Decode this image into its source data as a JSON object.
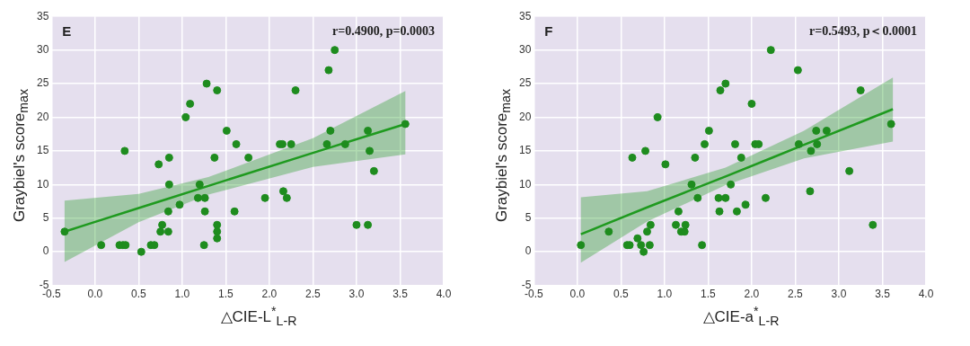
{
  "chart_data": [
    {
      "type": "scatter",
      "xlabel": "△CIE-L$^{*}$$_{L-R}$",
      "ylabel": "Graybiel's score$_{max}$",
      "annotations": [
        "E",
        "r=0.4900, p=0.0003"
      ],
      "grid": true,
      "xlim": [
        -0.5,
        4.0
      ],
      "xticks": [
        {
          "value": -0.5,
          "label": "-0.5"
        },
        {
          "value": 0,
          "label": "0.0"
        },
        {
          "value": 0.5,
          "label": "0.5"
        },
        {
          "value": 1,
          "label": "1.0"
        },
        {
          "value": 1.5,
          "label": "1.5"
        },
        {
          "value": 2,
          "label": "2.0"
        },
        {
          "value": 2.5,
          "label": "2.5"
        },
        {
          "value": 3,
          "label": "3.0"
        },
        {
          "value": 3.5,
          "label": "3.5"
        },
        {
          "value": 4,
          "label": "4.0"
        }
      ],
      "ylim": [
        -5,
        35
      ],
      "yticks": [
        -5,
        0,
        5,
        10,
        15,
        20,
        25,
        30,
        35
      ],
      "series": [
        {
          "color": "#1e8c1e",
          "marker": "circle",
          "x": [
            -0.35,
            0.34,
            0.07,
            0.28,
            0.32,
            0.35,
            0.53,
            0.64,
            0.68,
            0.73,
            0.85,
            0.85,
            0.77,
            0.75,
            0.84,
            0.84,
            0.97,
            1.04,
            1.09,
            1.2,
            1.18,
            1.26,
            1.26,
            1.25,
            1.28,
            1.4,
            1.37,
            1.4,
            1.4,
            1.4,
            1.51,
            1.62,
            1.6,
            1.76,
            1.95,
            2.75,
            2.68,
            2.3,
            3.56,
            2.7,
            3.13,
            2.12,
            2.15,
            2.25,
            2.66,
            2.87,
            3.15,
            3.2,
            2.16,
            2.2,
            3.0,
            3.13
          ],
          "values": [
            3,
            15,
            1,
            1,
            1,
            1,
            0,
            1,
            1,
            13,
            14,
            10,
            4,
            3,
            3,
            6,
            7,
            20,
            22,
            10,
            8,
            8,
            6,
            1,
            25,
            24,
            14,
            4,
            3,
            2,
            18,
            16,
            6,
            14,
            8,
            30,
            27,
            24,
            19,
            18,
            18,
            16,
            16,
            16,
            16,
            16,
            15,
            12,
            9,
            8,
            4,
            4
          ]
        },
        {
          "type": "line",
          "marker": "none",
          "color": "#1f9a1f",
          "x": [
            -0.35,
            0.5,
            1.3,
            2.5,
            3.56
          ],
          "values": [
            3.0,
            6.5,
            9.8,
            14.7,
            19.0
          ],
          "lower": [
            -1.5,
            4.4,
            8.5,
            12.6,
            14.5
          ],
          "upper": [
            7.6,
            8.6,
            11.1,
            16.9,
            23.9
          ]
        }
      ]
    },
    {
      "type": "scatter",
      "xlabel": "△CIE-a$^{*}$$_{L-R}$",
      "ylabel": "Graybiel's score$_{max}$",
      "annotations": [
        "F",
        "r=0.5493, p＜0.0001"
      ],
      "grid": true,
      "xlim": [
        -0.5,
        4.0
      ],
      "xticks": [
        {
          "value": -0.5,
          "label": "-0.5"
        },
        {
          "value": 0,
          "label": "0.0"
        },
        {
          "value": 0.5,
          "label": "0.5"
        },
        {
          "value": 1,
          "label": "1.0"
        },
        {
          "value": 1.5,
          "label": "1.5"
        },
        {
          "value": 2,
          "label": "2.0"
        },
        {
          "value": 2.5,
          "label": "2.5"
        },
        {
          "value": 3,
          "label": "3.0"
        },
        {
          "value": 3.5,
          "label": "3.5"
        },
        {
          "value": 4,
          "label": "4.0"
        }
      ],
      "ylim": [
        -5,
        35
      ],
      "yticks": [
        -5,
        0,
        5,
        10,
        15,
        20,
        25,
        30,
        35
      ],
      "series": [
        {
          "color": "#1e8c1e",
          "marker": "circle",
          "x": [
            0.04,
            0.36,
            0.57,
            0.6,
            0.63,
            0.69,
            0.73,
            0.76,
            0.78,
            0.8,
            0.83,
            0.84,
            0.92,
            1.01,
            1.13,
            1.16,
            1.19,
            1.23,
            1.24,
            1.31,
            1.35,
            1.38,
            1.43,
            1.46,
            1.51,
            1.64,
            1.7,
            1.62,
            1.7,
            1.63,
            1.76,
            1.81,
            1.83,
            1.88,
            2.22,
            2.53,
            3.25,
            2.0,
            3.6,
            2.74,
            2.86,
            2.04,
            2.08,
            2.54,
            2.75,
            2.68,
            3.12,
            2.67,
            2.16,
            1.93,
            3.39
          ],
          "values": [
            1,
            3,
            1,
            1,
            14,
            2,
            1,
            0,
            15,
            3,
            1,
            4,
            20,
            13,
            4,
            6,
            3,
            3,
            4,
            10,
            14,
            8,
            1,
            16,
            18,
            24,
            25,
            8,
            8,
            6,
            10,
            16,
            6,
            14,
            30,
            27,
            24,
            22,
            19,
            18,
            18,
            16,
            16,
            16,
            16,
            15,
            12,
            9,
            8,
            7,
            4
          ]
        },
        {
          "type": "line",
          "marker": "none",
          "color": "#1f9a1f",
          "x": [
            0.04,
            0.8,
            1.7,
            2.6,
            3.62
          ],
          "values": [
            2.6,
            6.6,
            11.2,
            15.9,
            21.2
          ],
          "lower": [
            -1.6,
            4.5,
            9.9,
            13.9,
            16.4
          ],
          "upper": [
            8.1,
            9.0,
            12.5,
            18.0,
            25.9
          ]
        }
      ]
    }
  ]
}
